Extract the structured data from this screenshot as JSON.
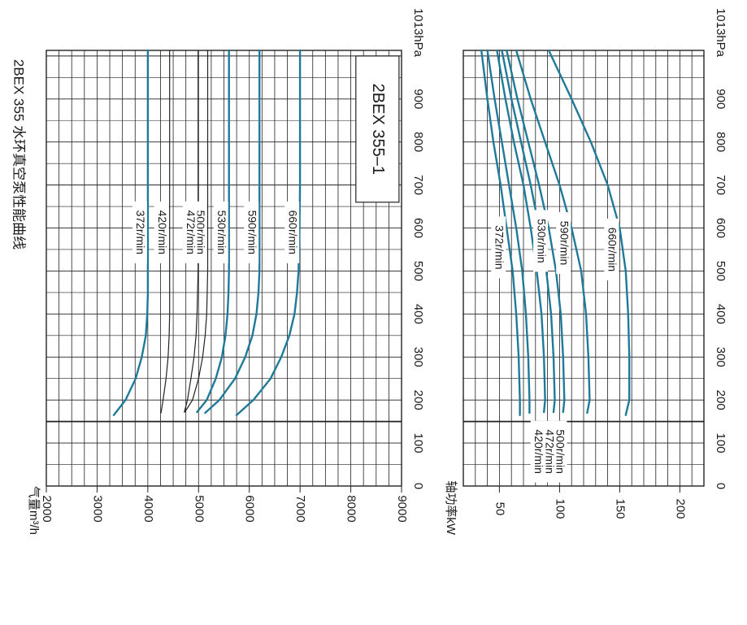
{
  "title": "2BEX 355 水环真空泵性能曲线",
  "colors": {
    "curve": "#1f7a9a",
    "grid": "#222222",
    "thin_curve": "#222222"
  },
  "chart_data": [
    {
      "type": "line",
      "model": "2BEX 355–1",
      "ylabel": "气量m³/h",
      "x_unit": "1013hPa",
      "xlim": [
        0,
        1013
      ],
      "ylim": [
        2000,
        9000
      ],
      "x_ticks": [
        0,
        100,
        200,
        300,
        400,
        500,
        600,
        700,
        800,
        900
      ],
      "x_tick_labels": [
        "0",
        "100",
        "200",
        "300",
        "400",
        "500",
        "600",
        "700",
        "800",
        "900"
      ],
      "y_ticks": [
        2000,
        3000,
        4000,
        5000,
        6000,
        7000,
        8000,
        9000
      ],
      "y_tick_labels": [
        "2000",
        "3000",
        "4000",
        "5000",
        "6000",
        "7000",
        "8000",
        "9000"
      ],
      "series": [
        {
          "name": "660r/min",
          "x": [
            165,
            200,
            250,
            300,
            350,
            400,
            450,
            500,
            600,
            700,
            800,
            900,
            1013
          ],
          "y": [
            5750,
            6080,
            6420,
            6630,
            6790,
            6890,
            6940,
            6970,
            6990,
            7000,
            7000,
            7000,
            7000
          ]
        },
        {
          "name": "590r/min",
          "x": [
            170,
            200,
            250,
            300,
            350,
            400,
            450,
            500,
            600,
            800,
            1013
          ],
          "y": [
            5130,
            5410,
            5720,
            5920,
            6060,
            6140,
            6180,
            6200,
            6200,
            6200,
            6200
          ]
        },
        {
          "name": "530r/min",
          "x": [
            172,
            200,
            250,
            300,
            350,
            400,
            450,
            500,
            600,
            800,
            1013
          ],
          "y": [
            4970,
            5160,
            5340,
            5460,
            5530,
            5570,
            5590,
            5600,
            5600,
            5600,
            5600
          ]
        },
        {
          "name": "500r/min",
          "x": [
            172,
            200,
            250,
            300,
            350,
            400,
            500,
            600,
            1013
          ],
          "y": [
            4730,
            4880,
            5000,
            5080,
            5130,
            5160,
            5180,
            5180,
            5180
          ]
        },
        {
          "name": "472r/min",
          "x": [
            172,
            200,
            250,
            300,
            350,
            400,
            500,
            600,
            1013
          ],
          "y": [
            4720,
            4780,
            4850,
            4910,
            4950,
            4970,
            4990,
            4990,
            4990
          ]
        },
        {
          "name": "420r/min",
          "x": [
            170,
            200,
            250,
            300,
            350,
            400,
            500,
            1013
          ],
          "y": [
            4260,
            4300,
            4360,
            4400,
            4420,
            4430,
            4430,
            4430
          ]
        },
        {
          "name": "372r/min",
          "x": [
            165,
            200,
            250,
            300,
            350,
            400,
            450,
            500,
            1013
          ],
          "y": [
            3330,
            3560,
            3760,
            3880,
            3960,
            3990,
            4000,
            4000,
            4000
          ]
        }
      ]
    },
    {
      "type": "line",
      "ylabel": "轴功率kW",
      "x_unit": "1013hPa",
      "xlim": [
        0,
        1013
      ],
      "ylim": [
        20,
        220
      ],
      "x_ticks": [
        0,
        100,
        200,
        300,
        400,
        500,
        600,
        700,
        800,
        900
      ],
      "x_tick_labels": [
        "0",
        "100",
        "200",
        "300",
        "400",
        "500",
        "600",
        "700",
        "800",
        "900"
      ],
      "y_ticks": [
        50,
        100,
        150,
        200
      ],
      "y_tick_labels": [
        "50",
        "100",
        "150",
        "200"
      ],
      "series": [
        {
          "name": "660r/min",
          "x": [
            165,
            200,
            300,
            400,
            500,
            600,
            700,
            800,
            900,
            1013
          ],
          "y": [
            155,
            158,
            158,
            157,
            155,
            150,
            140,
            126,
            110,
            91
          ]
        },
        {
          "name": "590r/min",
          "x": [
            170,
            200,
            300,
            400,
            500,
            600,
            700,
            800,
            900,
            1013
          ],
          "y": [
            123,
            125,
            124,
            122,
            118,
            110,
            100,
            88,
            76,
            64
          ]
        },
        {
          "name": "530r/min",
          "x": [
            172,
            200,
            300,
            400,
            500,
            600,
            700,
            800,
            900,
            1013
          ],
          "y": [
            103,
            104,
            103,
            101,
            97,
            91,
            83,
            74,
            65,
            56
          ]
        },
        {
          "name": "500r/min",
          "x": [
            172,
            200,
            300,
            400,
            500,
            600,
            700,
            800,
            900,
            1013
          ],
          "y": [
            95,
            96,
            95,
            93,
            89,
            83,
            76,
            68,
            60,
            52
          ]
        },
        {
          "name": "472r/min",
          "x": [
            172,
            200,
            300,
            400,
            500,
            600,
            700,
            800,
            900,
            1013
          ],
          "y": [
            87,
            88,
            87,
            85,
            81,
            76,
            70,
            62,
            55,
            48
          ]
        },
        {
          "name": "420r/min",
          "x": [
            170,
            200,
            300,
            400,
            500,
            600,
            700,
            800,
            900,
            1013
          ],
          "y": [
            75,
            75,
            74,
            72,
            69,
            64,
            58,
            52,
            46,
            40
          ]
        },
        {
          "name": "372r/min",
          "x": [
            165,
            200,
            300,
            400,
            500,
            600,
            700,
            800,
            900,
            1013
          ],
          "y": [
            67,
            67,
            66,
            64,
            61,
            56,
            51,
            45,
            40,
            35
          ]
        }
      ]
    }
  ]
}
